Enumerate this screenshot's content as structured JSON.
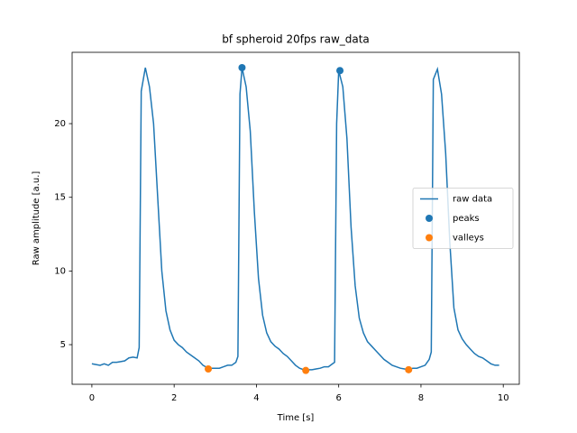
{
  "chart_data": {
    "type": "line",
    "title": "bf spheroid 20fps raw_data",
    "x_label": "Time [s]",
    "y_label": "Raw amplitude [a.u.]",
    "xlim": [
      -0.48,
      10.39
    ],
    "ylim": [
      2.31,
      24.84
    ],
    "xticks": [
      0,
      2,
      4,
      6,
      8,
      10
    ],
    "yticks": [
      5,
      10,
      15,
      20
    ],
    "legend": "center right",
    "series": [
      {
        "name": "raw data",
        "type": "line",
        "color": "#1f77b4",
        "x": [
          0,
          0.1,
          0.2,
          0.3,
          0.4,
          0.5,
          0.6,
          0.7,
          0.8,
          0.9,
          1.0,
          1.1,
          1.15,
          1.2,
          1.3,
          1.4,
          1.5,
          1.6,
          1.7,
          1.8,
          1.9,
          2.0,
          2.1,
          2.2,
          2.3,
          2.4,
          2.5,
          2.6,
          2.7,
          2.8,
          2.9,
          3.0,
          3.1,
          3.2,
          3.3,
          3.4,
          3.5,
          3.55,
          3.6,
          3.65,
          3.75,
          3.85,
          3.95,
          4.05,
          4.15,
          4.25,
          4.35,
          4.45,
          4.55,
          4.65,
          4.75,
          4.85,
          4.95,
          5.05,
          5.15,
          5.25,
          5.35,
          5.45,
          5.55,
          5.65,
          5.75,
          5.85,
          5.9,
          5.95,
          6.0,
          6.1,
          6.2,
          6.3,
          6.4,
          6.5,
          6.6,
          6.7,
          6.8,
          6.9,
          7.0,
          7.1,
          7.2,
          7.3,
          7.4,
          7.5,
          7.6,
          7.7,
          7.8,
          7.9,
          8.0,
          8.1,
          8.2,
          8.25,
          8.3,
          8.4,
          8.5,
          8.6,
          8.7,
          8.8,
          8.9,
          9.0,
          9.1,
          9.2,
          9.3,
          9.4,
          9.5,
          9.6,
          9.7,
          9.8,
          9.9
        ],
        "values": [
          3.7,
          3.65,
          3.6,
          3.7,
          3.6,
          3.8,
          3.8,
          3.85,
          3.9,
          4.1,
          4.15,
          4.1,
          4.8,
          22.2,
          23.8,
          22.5,
          20.0,
          15.0,
          10.0,
          7.3,
          6.0,
          5.3,
          5.0,
          4.8,
          4.5,
          4.3,
          4.1,
          3.9,
          3.6,
          3.45,
          3.4,
          3.4,
          3.4,
          3.5,
          3.6,
          3.6,
          3.8,
          4.2,
          22.0,
          23.8,
          22.5,
          19.5,
          14.0,
          9.5,
          7.0,
          5.8,
          5.2,
          4.9,
          4.7,
          4.4,
          4.2,
          3.9,
          3.6,
          3.4,
          3.3,
          3.3,
          3.3,
          3.35,
          3.4,
          3.5,
          3.5,
          3.7,
          3.8,
          20.0,
          23.6,
          22.5,
          19.0,
          13.0,
          9.0,
          6.8,
          5.8,
          5.2,
          4.9,
          4.6,
          4.3,
          4.0,
          3.8,
          3.6,
          3.5,
          3.4,
          3.35,
          3.3,
          3.4,
          3.4,
          3.5,
          3.6,
          4.0,
          4.5,
          23.0,
          23.7,
          22.0,
          18.0,
          12.0,
          7.5,
          6.0,
          5.4,
          5.0,
          4.7,
          4.4,
          4.2,
          4.1,
          3.9,
          3.7,
          3.6,
          3.6
        ]
      },
      {
        "name": "peaks",
        "type": "scatter",
        "color": "#1f77b4",
        "x": [
          3.65,
          6.03
        ],
        "values": [
          23.8,
          23.6
        ]
      },
      {
        "name": "valleys",
        "type": "scatter",
        "color": "#ff7f0e",
        "x": [
          2.83,
          5.2,
          7.7
        ],
        "values": [
          3.35,
          3.25,
          3.3
        ]
      }
    ]
  }
}
